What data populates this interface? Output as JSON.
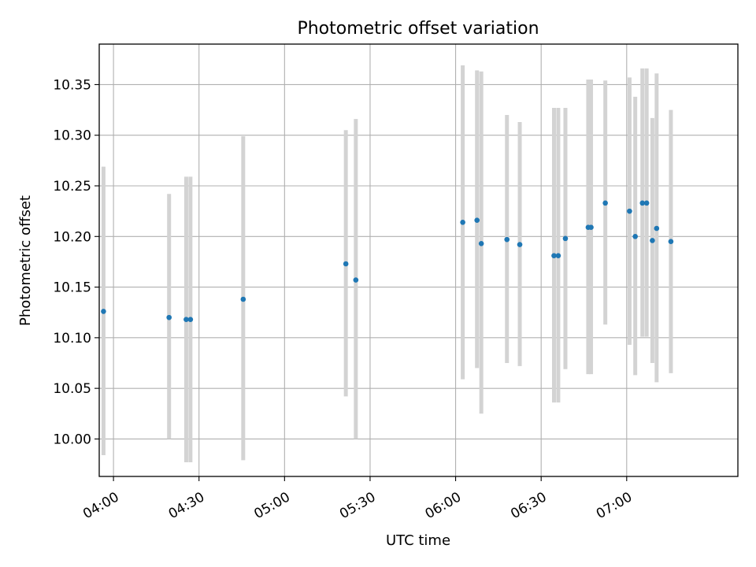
{
  "chart_data": {
    "type": "scatter",
    "title": "Photometric offset variation",
    "xlabel": "UTC time",
    "ylabel": "Photometric offset",
    "x_tick_labels": [
      "04:00",
      "04:30",
      "05:00",
      "05:30",
      "06:00",
      "06:30",
      "07:00"
    ],
    "y_tick_labels": [
      "10.00",
      "10.05",
      "10.10",
      "10.15",
      "10.20",
      "10.25",
      "10.30",
      "10.35"
    ],
    "xlim": [
      "03:55",
      "07:39"
    ],
    "ylim": [
      9.963,
      10.39
    ],
    "grid": true,
    "colors": {
      "point": "#1f77b4",
      "errorbar": "#d3d3d3",
      "grid": "#b0b0b0"
    },
    "points": [
      {
        "x": "03:56:30",
        "y": 10.126,
        "yerr_low": 9.984,
        "yerr_high": 10.269
      },
      {
        "x": "04:19:30",
        "y": 10.12,
        "yerr_low": 10.0,
        "yerr_high": 10.242
      },
      {
        "x": "04:25:30",
        "y": 10.118,
        "yerr_low": 9.977,
        "yerr_high": 10.259
      },
      {
        "x": "04:27:00",
        "y": 10.118,
        "yerr_low": 9.977,
        "yerr_high": 10.259
      },
      {
        "x": "04:45:30",
        "y": 10.138,
        "yerr_low": 9.979,
        "yerr_high": 10.299
      },
      {
        "x": "05:21:30",
        "y": 10.173,
        "yerr_low": 10.042,
        "yerr_high": 10.305
      },
      {
        "x": "05:25:00",
        "y": 10.157,
        "yerr_low": 10.0,
        "yerr_high": 10.316
      },
      {
        "x": "06:02:30",
        "y": 10.214,
        "yerr_low": 10.059,
        "yerr_high": 10.369
      },
      {
        "x": "06:07:30",
        "y": 10.216,
        "yerr_low": 10.07,
        "yerr_high": 10.364
      },
      {
        "x": "06:09:00",
        "y": 10.193,
        "yerr_low": 10.025,
        "yerr_high": 10.363
      },
      {
        "x": "06:18:00",
        "y": 10.197,
        "yerr_low": 10.075,
        "yerr_high": 10.32
      },
      {
        "x": "06:22:30",
        "y": 10.192,
        "yerr_low": 10.072,
        "yerr_high": 10.313
      },
      {
        "x": "06:34:30",
        "y": 10.181,
        "yerr_low": 10.036,
        "yerr_high": 10.327
      },
      {
        "x": "06:36:00",
        "y": 10.181,
        "yerr_low": 10.036,
        "yerr_high": 10.327
      },
      {
        "x": "06:38:30",
        "y": 10.198,
        "yerr_low": 10.069,
        "yerr_high": 10.327
      },
      {
        "x": "06:46:30",
        "y": 10.209,
        "yerr_low": 10.064,
        "yerr_high": 10.355
      },
      {
        "x": "06:47:30",
        "y": 10.209,
        "yerr_low": 10.064,
        "yerr_high": 10.355
      },
      {
        "x": "06:52:30",
        "y": 10.233,
        "yerr_low": 10.113,
        "yerr_high": 10.354
      },
      {
        "x": "07:01:00",
        "y": 10.225,
        "yerr_low": 10.093,
        "yerr_high": 10.357
      },
      {
        "x": "07:03:00",
        "y": 10.2,
        "yerr_low": 10.063,
        "yerr_high": 10.338
      },
      {
        "x": "07:05:30",
        "y": 10.233,
        "yerr_low": 10.101,
        "yerr_high": 10.366
      },
      {
        "x": "07:07:00",
        "y": 10.233,
        "yerr_low": 10.101,
        "yerr_high": 10.366
      },
      {
        "x": "07:09:00",
        "y": 10.196,
        "yerr_low": 10.075,
        "yerr_high": 10.317
      },
      {
        "x": "07:10:30",
        "y": 10.208,
        "yerr_low": 10.056,
        "yerr_high": 10.361
      },
      {
        "x": "07:15:30",
        "y": 10.195,
        "yerr_low": 10.065,
        "yerr_high": 10.325
      }
    ]
  }
}
